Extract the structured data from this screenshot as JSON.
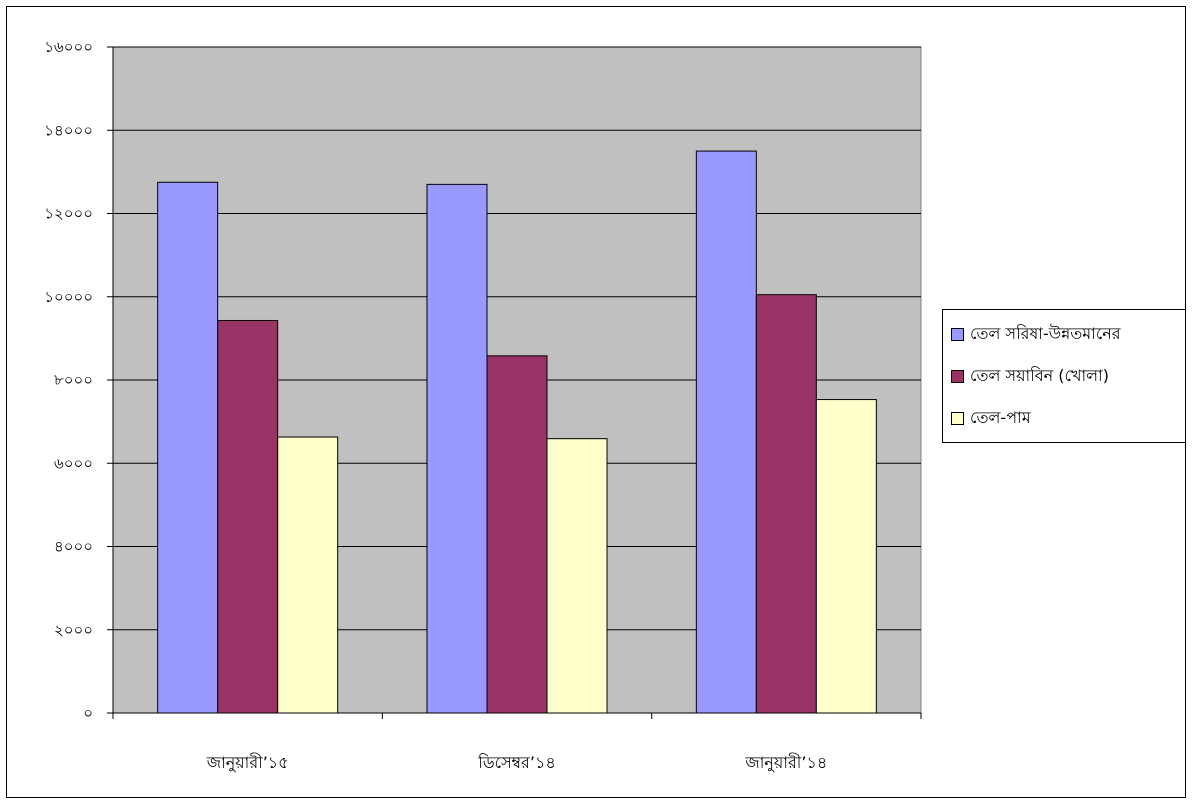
{
  "chart_data": {
    "type": "bar",
    "categories": [
      "জানুয়ারী’১৫",
      "ডিসেম্বর’১৪",
      "জানুয়ারী’১৪"
    ],
    "series": [
      {
        "name": "তেল সরিষা-উন্নতমানের",
        "color": "#9999ff",
        "values": [
          12750,
          12700,
          13500
        ]
      },
      {
        "name": "তেল সয়াবিন (খোলা)",
        "color": "#993366",
        "values": [
          9430,
          8580,
          10050
        ]
      },
      {
        "name": "তেল-পাম",
        "color": "#ffffcc",
        "values": [
          6630,
          6590,
          7530
        ]
      }
    ],
    "ylim": [
      0,
      16000
    ],
    "yticks": [
      0,
      2000,
      4000,
      6000,
      8000,
      10000,
      12000,
      14000,
      16000
    ],
    "ytick_labels": [
      "০",
      "২০০০",
      "৪০০০",
      "৬০০০",
      "৮০০০",
      "১০০০০",
      "১২০০০",
      "১৪০০০",
      "১৬০০০"
    ],
    "plot_background": "#c0c0c0",
    "grid": true,
    "legend_position": "right"
  }
}
